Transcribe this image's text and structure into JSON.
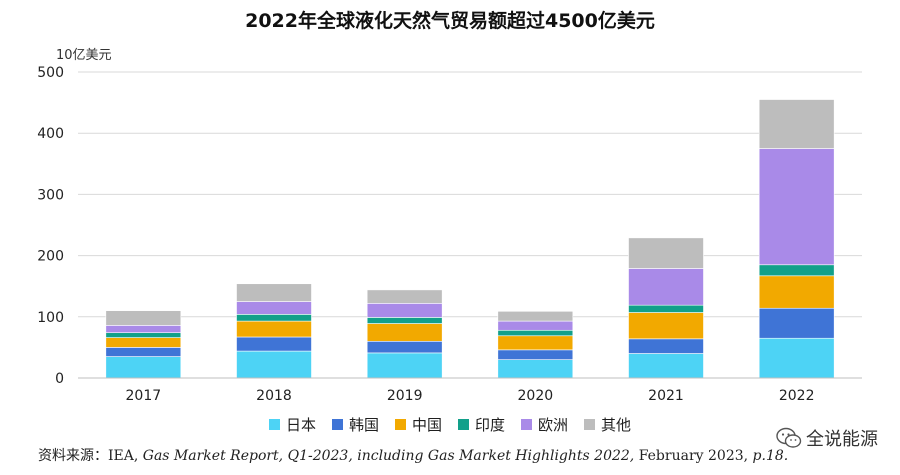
{
  "chart_data": {
    "type": "bar",
    "stacked": true,
    "title": "2022年全球液化天然气贸易额超过4500亿美元",
    "unit_label": "10亿美元",
    "categories": [
      "2017",
      "2018",
      "2019",
      "2020",
      "2021",
      "2022"
    ],
    "ylim": [
      0,
      500
    ],
    "yticks": [
      "0",
      "100",
      "200",
      "300",
      "400",
      "500"
    ],
    "grid": true,
    "legend_position": "bottom",
    "series": [
      {
        "name": "日本",
        "color": "#4dd3f5",
        "values": [
          35,
          44,
          41,
          30,
          40,
          65
        ]
      },
      {
        "name": "韩国",
        "color": "#3f74d6",
        "values": [
          15,
          23,
          19,
          16,
          24,
          49
        ]
      },
      {
        "name": "中国",
        "color": "#f2a900",
        "values": [
          16,
          26,
          29,
          23,
          43,
          53
        ]
      },
      {
        "name": "印度",
        "color": "#12a08a",
        "values": [
          8,
          11,
          10,
          9,
          12,
          18
        ]
      },
      {
        "name": "欧洲",
        "color": "#a98ae8",
        "values": [
          12,
          21,
          23,
          15,
          60,
          190
        ]
      },
      {
        "name": "其他",
        "color": "#bdbdbd",
        "values": [
          24,
          29,
          22,
          16,
          50,
          80
        ]
      }
    ]
  },
  "source": {
    "prefix": "资料来源：IEA, ",
    "italic": "Gas Market Report, Q1-2023, including Gas Market Highlights 2022,",
    "suffix": " February 2023, ",
    "page": "p.18."
  },
  "watermark": {
    "text": "全说能源",
    "icon": "wechat-icon"
  }
}
